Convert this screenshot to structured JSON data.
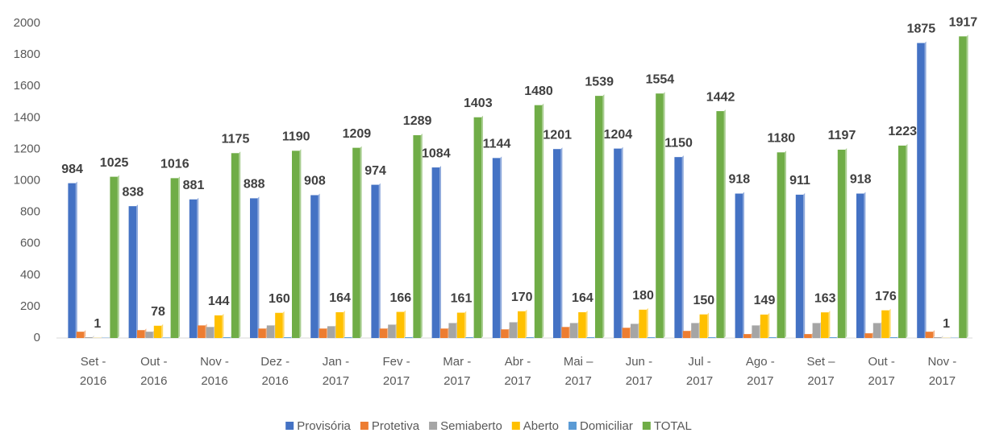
{
  "chart_data": {
    "type": "bar",
    "categories": [
      [
        "Set -",
        "2016"
      ],
      [
        "Out -",
        "2016"
      ],
      [
        "Nov -",
        "2016"
      ],
      [
        "Dez -",
        "2016"
      ],
      [
        "Jan -",
        "2017"
      ],
      [
        "Fev -",
        "2017"
      ],
      [
        "Mar -",
        "2017"
      ],
      [
        "Abr -",
        "2017"
      ],
      [
        "Mai –",
        "2017"
      ],
      [
        "Jun -",
        "2017"
      ],
      [
        "Jul -",
        "2017"
      ],
      [
        "Ago -",
        "2017"
      ],
      [
        "Set –",
        "2017"
      ],
      [
        "Out -",
        "2017"
      ],
      [
        "Nov -",
        "2017"
      ]
    ],
    "series": [
      {
        "name": "Provisória",
        "color": "#4472c4",
        "labels": true,
        "values": [
          984,
          838,
          881,
          888,
          908,
          974,
          1084,
          1144,
          1201,
          1204,
          1150,
          918,
          911,
          918,
          1875
        ]
      },
      {
        "name": "Protetiva",
        "color": "#ed7d31",
        "values": [
          40,
          50,
          80,
          60,
          60,
          60,
          60,
          55,
          70,
          65,
          45,
          25,
          25,
          30,
          40
        ]
      },
      {
        "name": "Semiaberto",
        "color": "#a5a5a5",
        "values": [
          5,
          40,
          70,
          80,
          75,
          85,
          95,
          100,
          95,
          90,
          95,
          80,
          95,
          95,
          5
        ]
      },
      {
        "name": "Aberto",
        "color": "#ffc000",
        "labels": true,
        "values": [
          1,
          78,
          144,
          160,
          164,
          166,
          161,
          170,
          164,
          180,
          150,
          149,
          163,
          176,
          1
        ]
      },
      {
        "name": "Domiciliar",
        "color": "#5b9bd5",
        "values": [
          2,
          3,
          5,
          5,
          5,
          5,
          5,
          5,
          5,
          5,
          5,
          5,
          5,
          5,
          2
        ]
      },
      {
        "name": "TOTAL",
        "color": "#70ad47",
        "labels": true,
        "values": [
          1025,
          1016,
          1175,
          1190,
          1209,
          1289,
          1403,
          1480,
          1539,
          1554,
          1442,
          1180,
          1197,
          1223,
          1917
        ]
      }
    ],
    "ylim": [
      0,
      2000
    ],
    "yticks": [
      0,
      200,
      400,
      600,
      800,
      1000,
      1200,
      1400,
      1600,
      1800,
      2000
    ],
    "grid": false,
    "legend": "bottom"
  }
}
